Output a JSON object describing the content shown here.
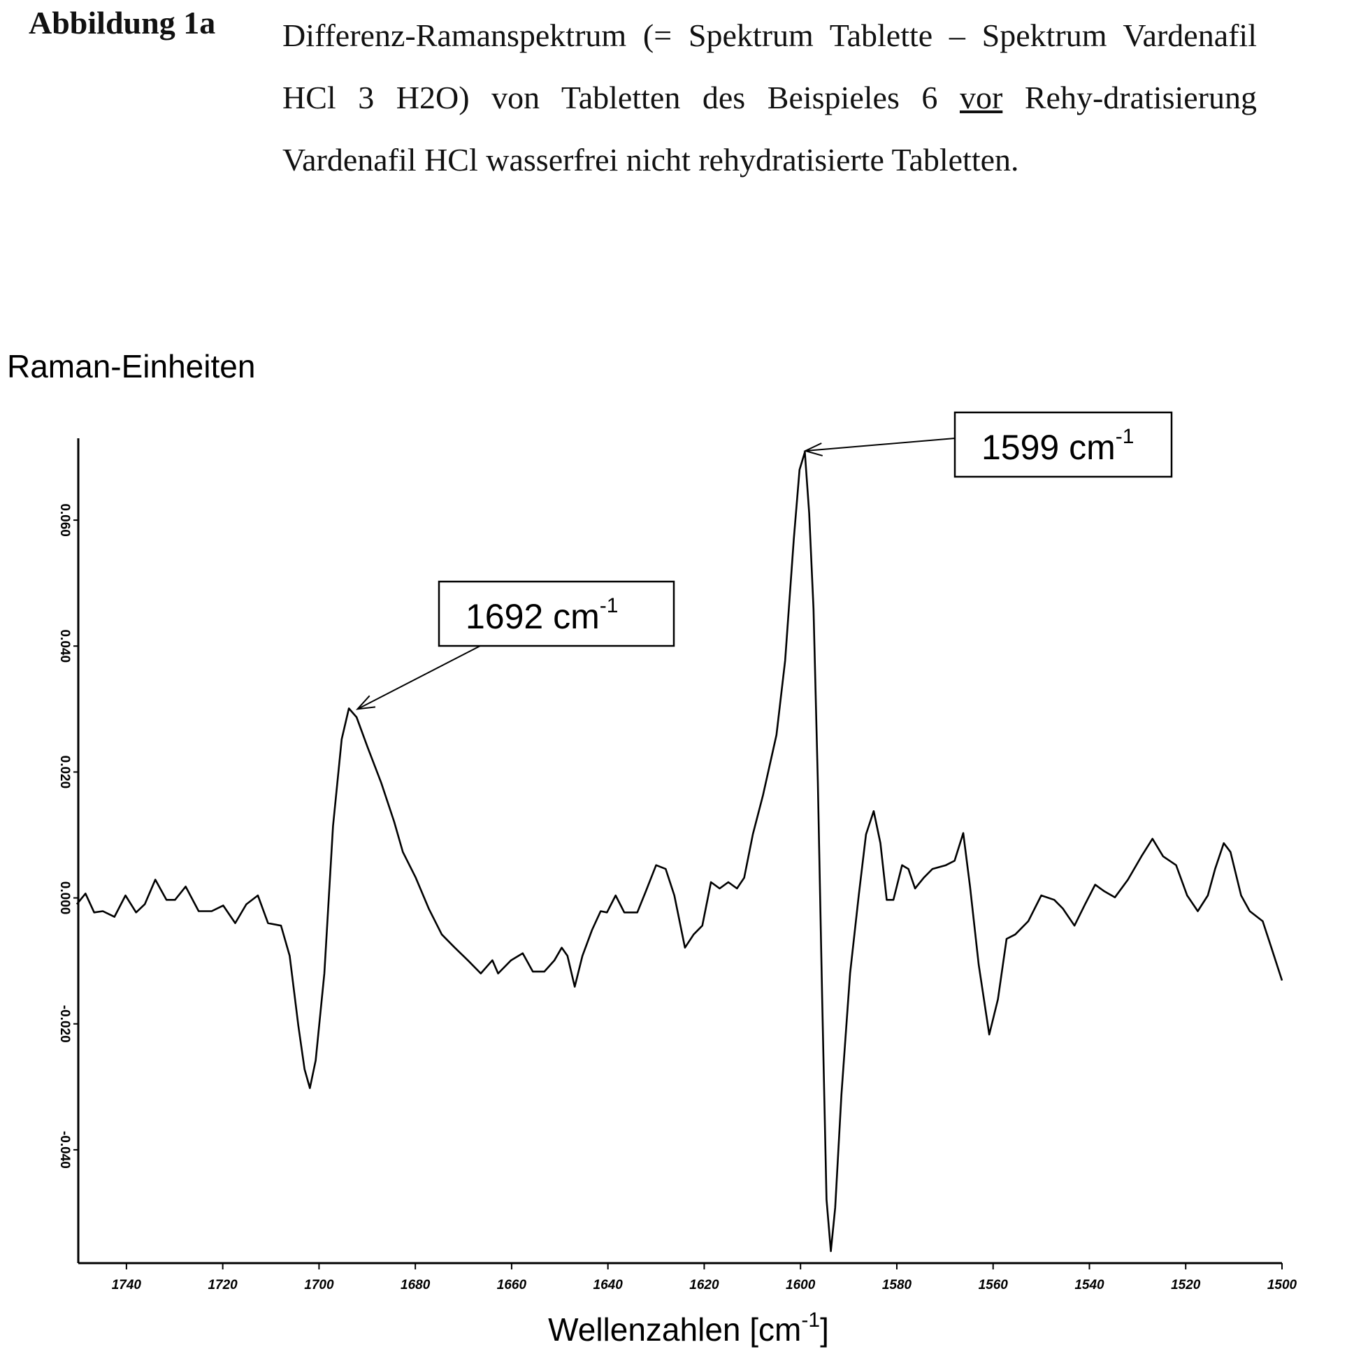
{
  "chart_data": {
    "type": "line",
    "figure_label": "Abbildung 1a",
    "caption": [
      "Differenz-Ramanspektrum (= Spektrum Tablette – Spektrum Vardenafil HCl 3 H2O) von Tabletten des Beispieles 6 ",
      "vor",
      " Rehy-dratisierung Vardenafil HCl wasserfrei nicht rehydratisierte Tabletten."
    ],
    "y_label": "Raman-Einheiten",
    "x_label": {
      "text": "Wellenzahlen [cm",
      "sup": "-1",
      "after": "]"
    },
    "color": "#000000",
    "xlim": [
      1750,
      1500
    ],
    "xticks": [
      1740,
      1720,
      1700,
      1680,
      1660,
      1640,
      1620,
      1600,
      1580,
      1560,
      1540,
      1520,
      1500
    ],
    "ylim": [
      -0.058,
      0.073
    ],
    "yticks": [
      {
        "value": -0.04,
        "label": "-0.040"
      },
      {
        "value": -0.02,
        "label": "-0.020"
      },
      {
        "value": 0,
        "label": "0.000"
      },
      {
        "value": 0.02,
        "label": "0.020"
      },
      {
        "value": 0.04,
        "label": "0.040"
      },
      {
        "value": 0.06,
        "label": "0.060"
      }
    ],
    "grid": false,
    "x": [
      1750.3,
      1748.5,
      1746.7,
      1744.9,
      1742.5,
      1740.2,
      1738.0,
      1736.2,
      1734.0,
      1731.7,
      1729.9,
      1727.7,
      1725.0,
      1722.3,
      1719.9,
      1717.4,
      1715.1,
      1712.7,
      1710.6,
      1707.9,
      1706.1,
      1704.3,
      1703.0,
      1701.9,
      1700.7,
      1698.9,
      1697.1,
      1695.3,
      1693.8,
      1692.2,
      1689.9,
      1687.1,
      1684.4,
      1682.6,
      1679.9,
      1677.2,
      1674.5,
      1671.8,
      1669.1,
      1666.4,
      1664.0,
      1662.8,
      1660.1,
      1657.7,
      1655.6,
      1653.2,
      1651.1,
      1649.6,
      1648.4,
      1646.9,
      1645.3,
      1643.3,
      1641.5,
      1640.2,
      1638.4,
      1636.6,
      1633.9,
      1632.1,
      1630.0,
      1628.0,
      1626.2,
      1624.0,
      1622.2,
      1620.4,
      1618.6,
      1616.8,
      1615.0,
      1613.2,
      1611.7,
      1609.9,
      1607.8,
      1605.0,
      1603.2,
      1601.4,
      1600.2,
      1599.1,
      1598.2,
      1597.3,
      1596.4,
      1595.5,
      1594.6,
      1593.7,
      1592.8,
      1591.5,
      1589.7,
      1587.9,
      1586.4,
      1584.8,
      1583.4,
      1582.1,
      1580.7,
      1578.9,
      1577.6,
      1576.2,
      1574.4,
      1572.6,
      1569.8,
      1568.0,
      1566.2,
      1564.8,
      1563.0,
      1560.8,
      1559.0,
      1557.2,
      1555.4,
      1552.7,
      1550.0,
      1547.3,
      1545.5,
      1543.1,
      1540.9,
      1538.8,
      1537.0,
      1534.7,
      1532.0,
      1529.2,
      1526.9,
      1524.7,
      1522.0,
      1519.7,
      1517.5,
      1515.4,
      1513.9,
      1512.1,
      1510.7,
      1508.5,
      1506.7,
      1504.0,
      1502.2,
      1500.0
    ],
    "values": [
      -0.001,
      0.0007,
      -0.0023,
      -0.0021,
      -0.003,
      0.0004,
      -0.0023,
      -0.001,
      0.0029,
      -0.0003,
      -0.0003,
      0.0018,
      -0.0021,
      -0.0021,
      -0.0012,
      -0.004,
      -0.001,
      0.0004,
      -0.004,
      -0.0044,
      -0.0092,
      -0.0203,
      -0.0272,
      -0.0302,
      -0.0258,
      -0.012,
      0.0114,
      0.0252,
      0.0301,
      0.0287,
      0.0239,
      0.0183,
      0.0121,
      0.0073,
      0.0032,
      -0.0017,
      -0.0058,
      -0.0079,
      -0.0099,
      -0.012,
      -0.0099,
      -0.012,
      -0.0099,
      -0.0088,
      -0.0117,
      -0.0117,
      -0.0099,
      -0.0079,
      -0.0092,
      -0.0141,
      -0.0092,
      -0.0051,
      -0.0021,
      -0.0023,
      0.0004,
      -0.0023,
      -0.0023,
      0.0011,
      0.0052,
      0.0046,
      0.0004,
      -0.0079,
      -0.0058,
      -0.0044,
      0.0025,
      0.0015,
      0.0025,
      0.0015,
      0.0032,
      0.0101,
      0.0163,
      0.0259,
      0.0377,
      0.057,
      0.068,
      0.0708,
      0.0611,
      0.0459,
      0.0183,
      -0.0161,
      -0.0479,
      -0.0561,
      -0.0492,
      -0.0313,
      -0.012,
      0.0004,
      0.0101,
      0.0138,
      0.0087,
      -0.0003,
      -0.0003,
      0.0052,
      0.0046,
      0.0015,
      0.0032,
      0.0046,
      0.0052,
      0.0059,
      0.0103,
      0.0018,
      -0.0106,
      -0.0217,
      -0.0161,
      -0.0065,
      -0.0058,
      -0.0037,
      0.0004,
      -0.0003,
      -0.0017,
      -0.0044,
      -0.001,
      0.0021,
      0.0011,
      0.0001,
      0.0029,
      0.0066,
      0.0094,
      0.0066,
      0.0052,
      0.0004,
      -0.0021,
      0.0004,
      0.0046,
      0.0087,
      0.0073,
      0.0004,
      -0.0021,
      -0.0037,
      -0.0079,
      -0.0131
    ],
    "annotations": [
      {
        "text": "1692 cm",
        "sup": "-1",
        "x": 1692,
        "y": 0.03
      },
      {
        "text": "1599 cm",
        "sup": "-1",
        "x": 1599,
        "y": 0.071
      }
    ]
  }
}
